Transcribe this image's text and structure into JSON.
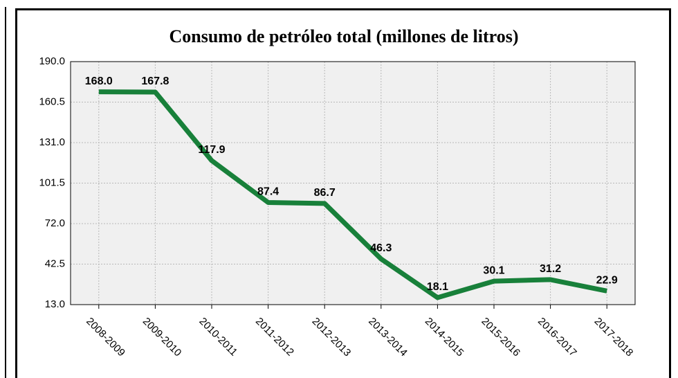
{
  "chart_data": {
    "type": "line",
    "title": "Consumo de petróleo total (millones de litros)",
    "categories": [
      "2008-2009",
      "2009-2010",
      "2010-2011",
      "2011-2012",
      "2012-2013",
      "2013-2014",
      "2014-2015",
      "2015-2016",
      "2016-2017",
      "2017-2018"
    ],
    "series": [
      {
        "color": "#18803a",
        "values": [
          168.0,
          167.8,
          117.9,
          87.4,
          86.7,
          46.3,
          18.1,
          30.1,
          31.2,
          22.9
        ],
        "value_labels": [
          "168.0",
          "167.8",
          "117.9",
          "87.4",
          "86.7",
          "46.3",
          "18.1",
          "30.1",
          "31.2",
          "22.9"
        ]
      }
    ],
    "ylim": [
      13,
      190
    ],
    "yticks": [
      {
        "value": 13,
        "label": "13.0"
      },
      42.5,
      {
        "value": 72,
        "label": "72.0"
      },
      101.5,
      {
        "value": 131,
        "label": "131.0"
      },
      160.5,
      {
        "value": 190,
        "label": "190.0"
      }
    ],
    "grid": true
  }
}
